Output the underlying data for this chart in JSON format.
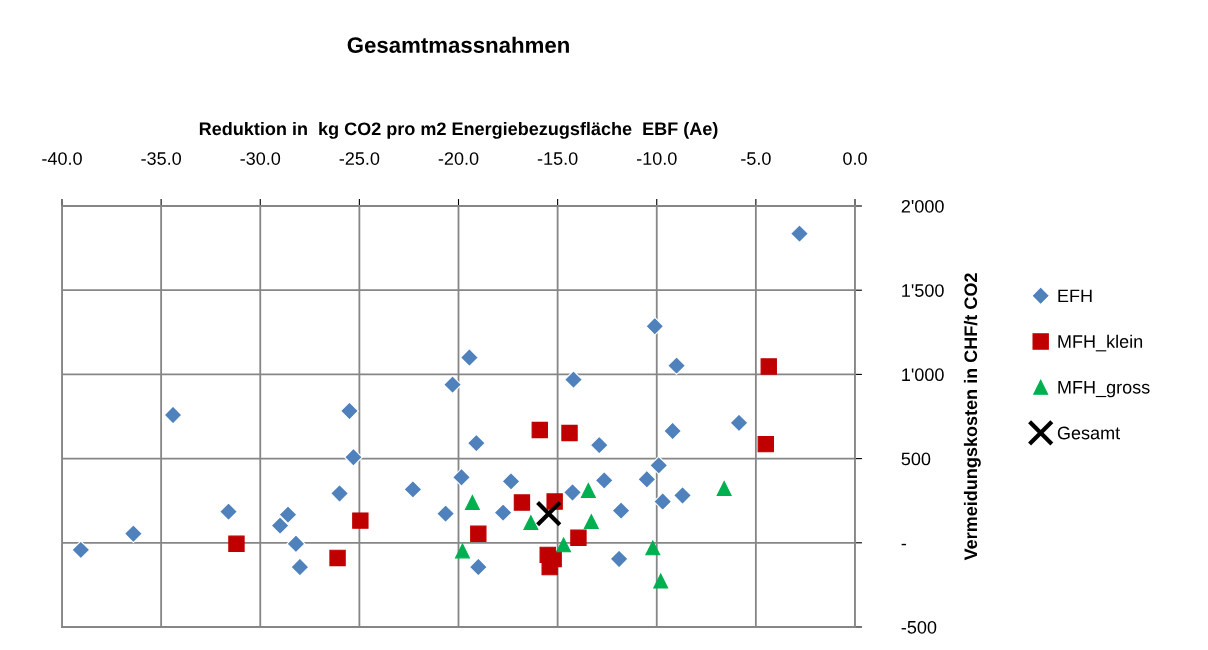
{
  "chart_data": {
    "type": "scatter",
    "title": "Gesamtmassnahmen",
    "xlabel": "Reduktion in  kg CO2 pro m2 Energiebezugsfläche  EBF (Ae)",
    "ylabel": "Vermeidungskosten in CHF/t CO2",
    "xlim": [
      -40,
      0
    ],
    "xticks": [
      {
        "value": -40,
        "label": "-40.0"
      },
      {
        "value": -35,
        "label": "-35.0"
      },
      {
        "value": -30,
        "label": "-30.0"
      },
      {
        "value": -25,
        "label": "-25.0"
      },
      {
        "value": -20,
        "label": "-20.0"
      },
      {
        "value": -15,
        "label": "-15.0"
      },
      {
        "value": -10,
        "label": "-10.0"
      },
      {
        "value": -5,
        "label": "-5.0"
      },
      {
        "value": 0,
        "label": "0.0"
      }
    ],
    "ylim": [
      -500,
      2000
    ],
    "yticks": [
      {
        "value": -500,
        "label": "-500"
      },
      {
        "value": 0,
        "label": "-"
      },
      {
        "value": 500,
        "label": "500"
      },
      {
        "value": 1000,
        "label": "1'000"
      },
      {
        "value": 1500,
        "label": "1'500"
      },
      {
        "value": 2000,
        "label": "2'000"
      }
    ],
    "grid": true,
    "legend": "right",
    "series": [
      {
        "name": "EFH",
        "color": "#4f81bd",
        "marker": "diamond",
        "x": [
          -39.05,
          -36.4,
          -34.4,
          -31.6,
          -29.0,
          -28.6,
          -28.2,
          -28.0,
          -26.0,
          -25.5,
          -25.3,
          -22.3,
          -20.65,
          -20.3,
          -19.45,
          -19.1,
          -19.85,
          -19.0,
          -17.35,
          -17.75,
          -14.2,
          -12.9,
          -14.25,
          -12.65,
          -11.8,
          -11.9,
          -10.5,
          -9.9,
          -9.7,
          -8.7,
          -9.2,
          -9.0,
          -10.1,
          -5.85,
          -2.8
        ],
        "values": [
          -42,
          54,
          759,
          185,
          102,
          167,
          -6,
          -144,
          293,
          783,
          508,
          317,
          173,
          939,
          1100,
          592,
          389,
          -144,
          365,
          179,
          969,
          580,
          299,
          371,
          191,
          -96,
          377,
          460,
          245,
          281,
          664,
          1052,
          1286,
          712,
          1836
        ]
      },
      {
        "name": "MFH_klein",
        "color": "#c00000",
        "marker": "square",
        "x": [
          -31.2,
          -26.1,
          -24.95,
          -15.9,
          -14.4,
          -4.35,
          -4.5,
          -16.8,
          -15.15,
          -19.0,
          -13.95,
          -15.5,
          -15.2,
          -15.4
        ],
        "values": [
          -6,
          -90,
          132,
          670,
          652,
          1047,
          586,
          239,
          245,
          54,
          30,
          -72,
          -96,
          -144
        ]
      },
      {
        "name": "MFH_gross",
        "color": "#00b050",
        "marker": "triangle",
        "x": [
          -19.3,
          -19.8,
          -16.35,
          -13.45,
          -13.3,
          -14.7,
          -10.2,
          -9.8,
          -6.6
        ],
        "values": [
          239,
          -48,
          120,
          311,
          126,
          -12,
          -30,
          -227,
          323
        ]
      },
      {
        "name": "Gesamt",
        "color": "#000000",
        "marker": "cross",
        "x": [
          -15.45
        ],
        "values": [
          173
        ]
      }
    ]
  }
}
